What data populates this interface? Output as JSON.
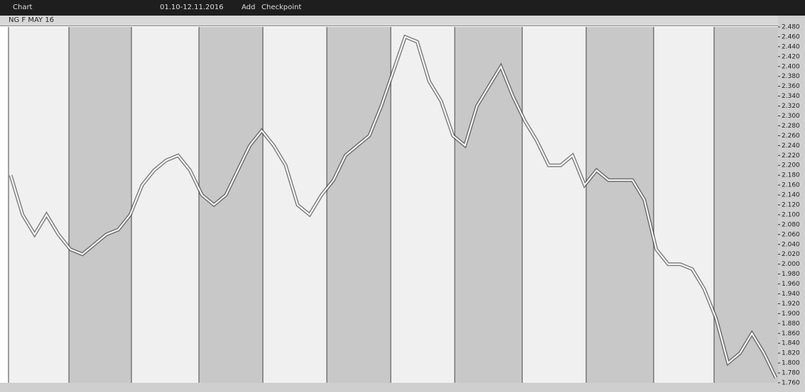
{
  "toolbar": {
    "chart": "Chart",
    "range": "01.10-12.11.2016",
    "add": "Add",
    "checkpoint": "Checkpoint"
  },
  "chart_data": {
    "type": "line",
    "title": "NG F MAY 16",
    "categories": [
      null,
      null,
      null,
      null,
      null,
      null,
      null,
      null,
      null,
      null,
      null,
      null,
      null,
      null,
      null,
      null,
      null,
      null,
      null,
      null,
      null,
      null,
      null,
      null,
      null,
      null,
      null,
      null,
      null,
      null,
      null,
      null,
      null,
      null,
      null,
      null,
      null,
      null,
      null,
      null,
      null,
      null,
      null,
      null,
      null,
      null,
      null,
      null,
      null,
      null,
      null,
      null,
      null,
      null,
      null,
      null,
      null,
      null,
      null,
      null,
      null,
      null,
      null,
      null,
      null
    ],
    "series": [
      {
        "name": "NG F MAY 16",
        "color": "#ffffff",
        "values": [
          2.18,
          2.1,
          2.06,
          2.1,
          2.06,
          2.03,
          2.02,
          2.04,
          2.06,
          2.07,
          2.1,
          2.16,
          2.19,
          2.21,
          2.22,
          2.19,
          2.14,
          2.12,
          2.14,
          2.19,
          2.24,
          2.27,
          2.24,
          2.2,
          2.12,
          2.1,
          2.14,
          2.17,
          2.22,
          2.24,
          2.26,
          2.32,
          2.39,
          2.46,
          2.45,
          2.37,
          2.33,
          2.26,
          2.24,
          2.32,
          2.36,
          2.4,
          2.34,
          2.29,
          2.25,
          2.2,
          2.2,
          2.22,
          2.16,
          2.19,
          2.17,
          2.17,
          2.17,
          2.13,
          2.03,
          2.0,
          2.0,
          1.99,
          1.95,
          1.89,
          1.8,
          1.82,
          1.86,
          1.82,
          1.77
        ]
      }
    ],
    "ylim": [
      1.76,
      2.48
    ],
    "yticks": [
      {
        "value": 2.48,
        "label": "2.480"
      },
      {
        "value": 2.46,
        "label": "2.460"
      },
      {
        "value": 2.44,
        "label": "2.440"
      },
      {
        "value": 2.42,
        "label": "2.420"
      },
      {
        "value": 2.4,
        "label": "2.400"
      },
      {
        "value": 2.38,
        "label": "2.380"
      },
      {
        "value": 2.36,
        "label": "2.360"
      },
      {
        "value": 2.34,
        "label": "2.340"
      },
      {
        "value": 2.32,
        "label": "2.320"
      },
      {
        "value": 2.3,
        "label": "2.300"
      },
      {
        "value": 2.28,
        "label": "2.280"
      },
      {
        "value": 2.26,
        "label": "2.260"
      },
      {
        "value": 2.24,
        "label": "2.240"
      },
      {
        "value": 2.22,
        "label": "2.220"
      },
      {
        "value": 2.2,
        "label": "2.200"
      },
      {
        "value": 2.18,
        "label": "2.180"
      },
      {
        "value": 2.16,
        "label": "2.160"
      },
      {
        "value": 2.14,
        "label": "2.140"
      },
      {
        "value": 2.12,
        "label": "2.120"
      },
      {
        "value": 2.1,
        "label": "2.100"
      },
      {
        "value": 2.08,
        "label": "2.080"
      },
      {
        "value": 2.06,
        "label": "2.060"
      },
      {
        "value": 2.04,
        "label": "2.040"
      },
      {
        "value": 2.02,
        "label": "2.020"
      },
      {
        "value": 2.0,
        "label": "2.000"
      },
      {
        "value": 1.98,
        "label": "1.980"
      },
      {
        "value": 1.96,
        "label": "1.960"
      },
      {
        "value": 1.94,
        "label": "1.940"
      },
      {
        "value": 1.92,
        "label": "1.920"
      },
      {
        "value": 1.9,
        "label": "1.900"
      },
      {
        "value": 1.88,
        "label": "1.880"
      },
      {
        "value": 1.86,
        "label": "1.860"
      },
      {
        "value": 1.84,
        "label": "1.840"
      },
      {
        "value": 1.82,
        "label": "1.820"
      },
      {
        "value": 1.8,
        "label": "1.800"
      },
      {
        "value": 1.78,
        "label": "1.780"
      },
      {
        "value": 1.76,
        "label": "1.760"
      }
    ],
    "grid": false
  }
}
